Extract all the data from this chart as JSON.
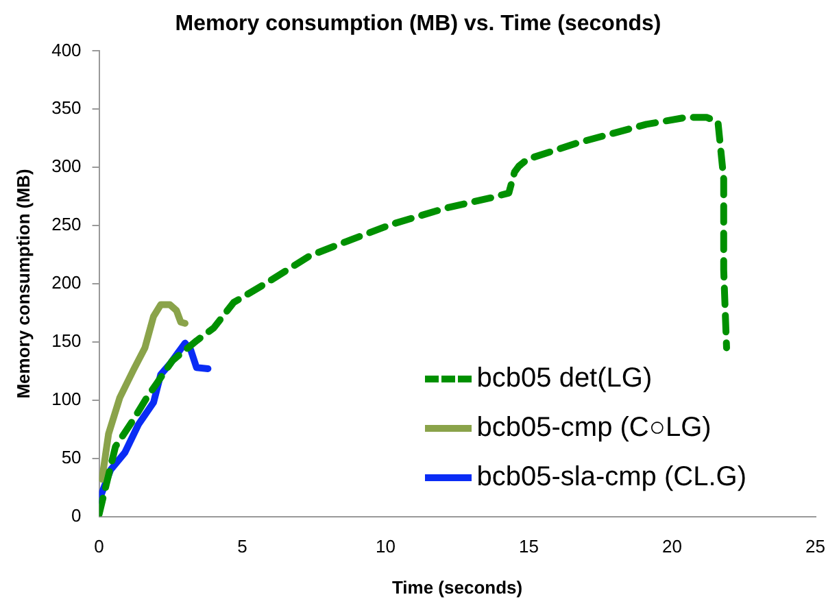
{
  "chart_data": {
    "type": "line",
    "title": "Memory consumption (MB) vs. Time (seconds)",
    "xlabel": "Time (seconds)",
    "ylabel": "Memory consumption (MB)",
    "xlim": [
      0,
      25
    ],
    "xticks": [
      0,
      5,
      10,
      15,
      20,
      25
    ],
    "ylim": [
      0,
      400
    ],
    "yticks": [
      0,
      50,
      100,
      150,
      200,
      250,
      300,
      350,
      400
    ],
    "legend": "bottom right",
    "marker": "none",
    "series": [
      {
        "name": "bcb05 det(LG)",
        "color": "#009000",
        "line_style": "dashed",
        "x": [
          0,
          0.57,
          1.19,
          1.66,
          2.0,
          2.56,
          3.4,
          4.0,
          4.7,
          5.8,
          7.35,
          8.6,
          10.2,
          12.1,
          13.7,
          14.3,
          14.5,
          14.65,
          14.95,
          16.7,
          19.1,
          20.5,
          21.2,
          21.6,
          21.8,
          21.8,
          21.9
        ],
        "values": [
          2,
          60,
          83,
          102,
          114,
          134,
          151,
          162,
          184,
          200,
          224,
          236,
          251,
          265,
          274,
          278,
          296,
          301,
          307,
          321,
          337,
          343,
          343,
          339,
          290,
          212,
          145
        ]
      },
      {
        "name": "bcb05-cmp (C○LG)",
        "color": "#8aa34a",
        "line_style": "solid",
        "x": [
          0.1,
          0.33,
          0.72,
          1.2,
          1.6,
          1.9,
          2.15,
          2.47,
          2.7,
          2.85,
          3.0
        ],
        "values": [
          32,
          71,
          102,
          126,
          145,
          172,
          182,
          182,
          177,
          167,
          166
        ]
      },
      {
        "name": "bcb05-sla-cmp (CL.G)",
        "color": "#0a2cf5",
        "line_style": "solid",
        "x": [
          0,
          0.4,
          0.9,
          1.37,
          1.9,
          2.15,
          2.47,
          3.0,
          3.2,
          3.4,
          3.8
        ],
        "values": [
          14,
          40,
          55,
          79,
          98,
          122,
          131,
          149,
          143,
          128,
          127
        ]
      }
    ]
  }
}
